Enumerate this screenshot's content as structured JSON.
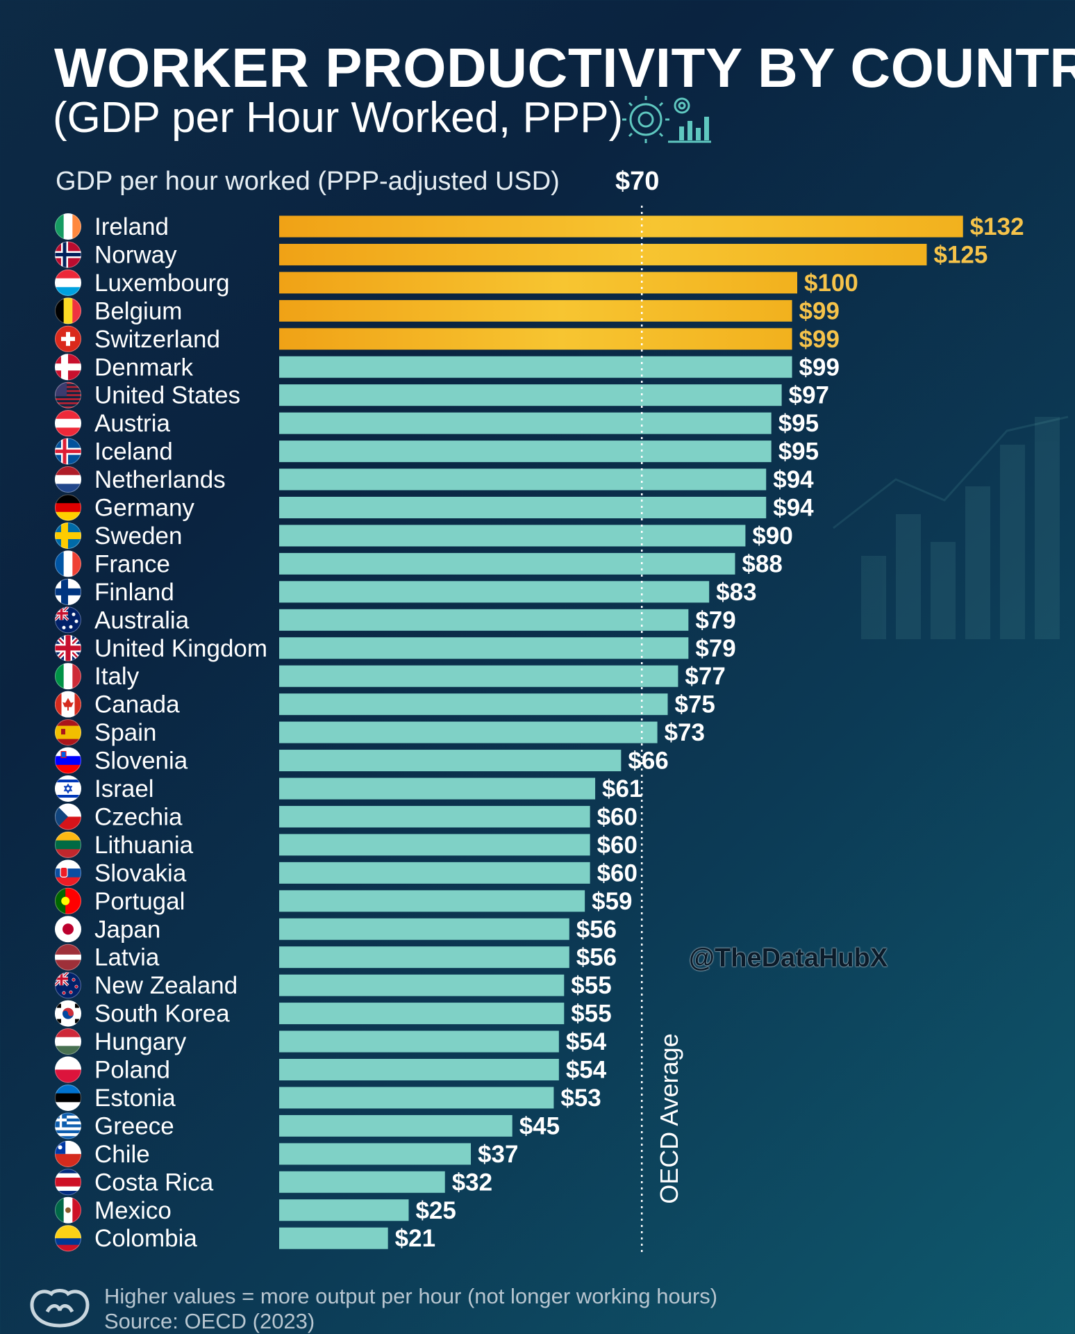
{
  "title": "WORKER PRODUCTIVITY BY COUNTRY",
  "subtitle": "(GDP per Hour Worked, PPP)",
  "watermark": "@TheDataHubX",
  "footer": {
    "note": "Higher values = more output per hour (not longer working hours)",
    "source": "Source: OECD (2023)"
  },
  "colors": {
    "highlight": "#f3b21a",
    "bar": "#7fd1c6",
    "highlight_label": "#f6c34a",
    "label": "#ffffff"
  },
  "chart_data": {
    "type": "bar",
    "orientation": "horizontal",
    "xlabel": "GDP per hour worked (PPP-adjusted USD)",
    "reference_line": {
      "value": 70,
      "label": "$70",
      "caption": "OECD Average"
    },
    "value_prefix": "$",
    "xlim": [
      0,
      140
    ],
    "highlighted_count": 5,
    "categories": [
      "Ireland",
      "Norway",
      "Luxembourg",
      "Belgium",
      "Switzerland",
      "Denmark",
      "United States",
      "Austria",
      "Iceland",
      "Netherlands",
      "Germany",
      "Sweden",
      "France",
      "Finland",
      "Australia",
      "United Kingdom",
      "Italy",
      "Canada",
      "Spain",
      "Slovenia",
      "Israel",
      "Czechia",
      "Lithuania",
      "Slovakia",
      "Portugal",
      "Japan",
      "Latvia",
      "New Zealand",
      "South Korea",
      "Hungary",
      "Poland",
      "Estonia",
      "Greece",
      "Chile",
      "Costa Rica",
      "Mexico",
      "Colombia"
    ],
    "values": [
      132,
      125,
      100,
      99,
      99,
      99,
      97,
      95,
      95,
      94,
      94,
      90,
      88,
      83,
      79,
      79,
      77,
      75,
      73,
      66,
      61,
      60,
      60,
      60,
      59,
      56,
      56,
      55,
      55,
      54,
      54,
      53,
      45,
      37,
      32,
      25,
      21
    ],
    "flags": [
      "ie",
      "no",
      "lu",
      "be",
      "ch",
      "dk",
      "us",
      "at",
      "is",
      "nl",
      "de",
      "se",
      "fr",
      "fi",
      "au",
      "gb",
      "it",
      "ca",
      "es",
      "si",
      "il",
      "cz",
      "lt",
      "sk",
      "pt",
      "jp",
      "lv",
      "nz",
      "kr",
      "hu",
      "pl",
      "ee",
      "gr",
      "cl",
      "cr",
      "mx",
      "co"
    ]
  }
}
